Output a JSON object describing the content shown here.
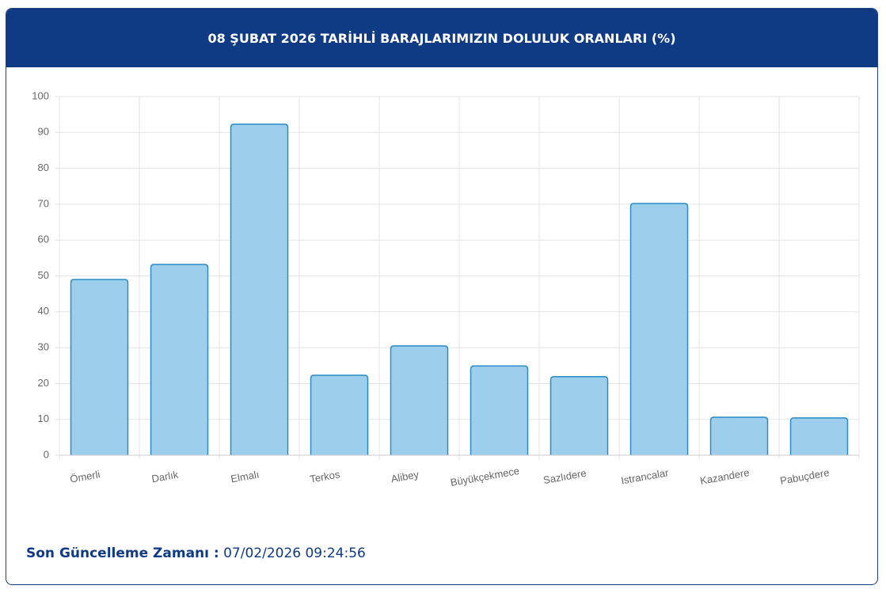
{
  "chart_data": {
    "type": "bar",
    "title": "08 ŞUBAT 2026 TARİHLİ BARAJLARIMIZIN DOLULUK ORANLARI (%)",
    "categories": [
      "Ömerli",
      "Darlık",
      "Elmalı",
      "Terkos",
      "Alibey",
      "Büyükçekmece",
      "Sazlıdere",
      "Istrancalar",
      "Kazandere",
      "Pabuçdere"
    ],
    "values": [
      49.0,
      53.2,
      92.3,
      22.3,
      30.5,
      24.9,
      21.9,
      70.2,
      10.6,
      10.4
    ],
    "color": "#9dcfec",
    "border_color": "#2a8bc6",
    "ylim": [
      0,
      100
    ],
    "yticks": [
      0,
      10,
      20,
      30,
      40,
      50,
      60,
      70,
      80,
      90,
      100
    ],
    "grid": true
  },
  "footer": {
    "label": "Son Güncelleme Zamanı :",
    "time": "07/02/2026 09:24:56"
  }
}
